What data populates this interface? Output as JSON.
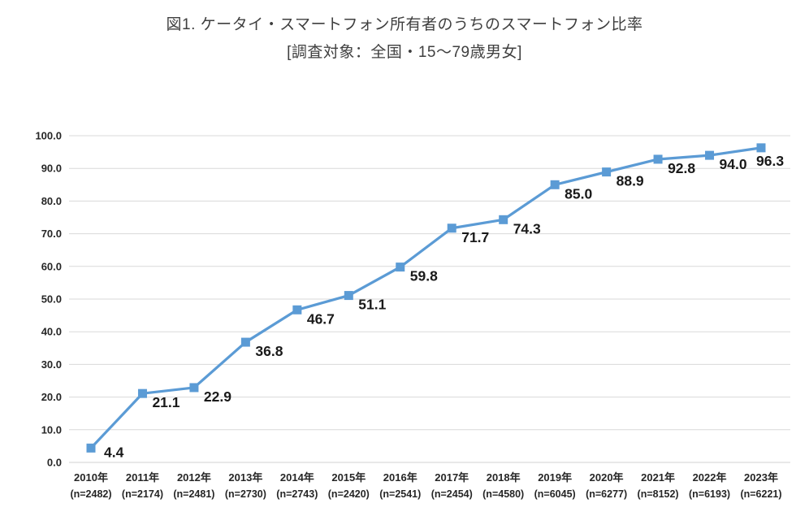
{
  "chart_data": {
    "type": "line",
    "title": "図1. ケータイ・スマートフォン所有者のうちのスマートフォン比率",
    "subtitle": "[調査対象：全国・15〜79歳男女]",
    "categories": [
      "2010年",
      "2011年",
      "2012年",
      "2013年",
      "2014年",
      "2015年",
      "2016年",
      "2017年",
      "2018年",
      "2019年",
      "2020年",
      "2021年",
      "2022年",
      "2023年"
    ],
    "category_sublabels": [
      "(n=2482)",
      "(n=2174)",
      "(n=2481)",
      "(n=2730)",
      "(n=2743)",
      "(n=2420)",
      "(n=2541)",
      "(n=2454)",
      "(n=4580)",
      "(n=6045)",
      "(n=6277)",
      "(n=8152)",
      "(n=6193)",
      "(n=6221)"
    ],
    "values": [
      4.4,
      21.1,
      22.9,
      36.8,
      46.7,
      51.1,
      59.8,
      71.7,
      74.3,
      85.0,
      88.9,
      92.8,
      94.0,
      96.3
    ],
    "data_labels": [
      "4.4",
      "21.1",
      "22.9",
      "36.8",
      "46.7",
      "51.1",
      "59.8",
      "71.7",
      "74.3",
      "85.0",
      "88.9",
      "92.8",
      "94.0",
      "96.3"
    ],
    "ylim": [
      0,
      100
    ],
    "ytick_step": 10,
    "ytick_labels": [
      "0.0",
      "10.0",
      "20.0",
      "30.0",
      "40.0",
      "50.0",
      "60.0",
      "70.0",
      "80.0",
      "90.0",
      "100.0"
    ],
    "grid": true,
    "legend": "none",
    "marker": "square",
    "colors": {
      "line": "#5B9BD5",
      "marker": "#5B9BD5",
      "grid": "#D9D9D9",
      "axis_line": "#D0D0D0",
      "axis_text": "#262626",
      "data_label": "#1a1a1a",
      "title_text": "#3f3f3f"
    }
  }
}
